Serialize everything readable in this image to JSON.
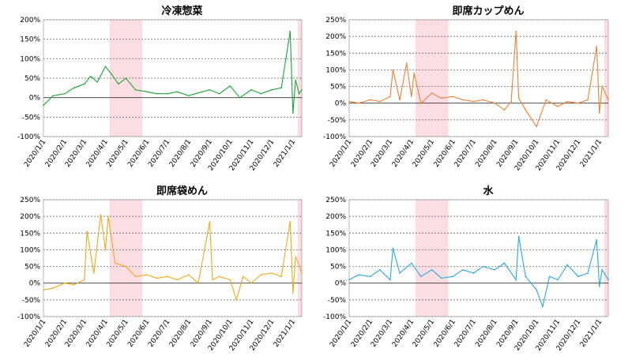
{
  "chart_data": [
    {
      "type": "line",
      "title": "冷凍惣菜",
      "color": "#1aa537",
      "ylim": [
        -100,
        200
      ],
      "yticks": [
        -100,
        -50,
        0,
        50,
        100,
        150,
        200
      ],
      "ytick_labels": [
        "-100%",
        "-50%",
        "0%",
        "50%",
        "100%",
        "150%",
        "200%"
      ],
      "xtick_labels": [
        "2020/1/1",
        "2020/2/1",
        "2020/3/1",
        "2020/4/1",
        "2020/5/1",
        "2020/6/1",
        "2020/7/1",
        "2020/8/1",
        "2020/9/1",
        "2020/10/1",
        "2020/11/1",
        "2020/12/1",
        "2021/1/1"
      ],
      "shaded_ranges": [
        [
          "2020/4/7",
          "2020/5/25"
        ],
        [
          "2021/1/8",
          "2021/1/14"
        ]
      ],
      "series": [
        {
          "x": [
            "2020/1/1",
            "2020/1/15",
            "2020/2/1",
            "2020/2/15",
            "2020/3/1",
            "2020/3/10",
            "2020/3/20",
            "2020/4/1",
            "2020/4/10",
            "2020/4/20",
            "2020/5/1",
            "2020/5/15",
            "2020/6/1",
            "2020/6/15",
            "2020/7/1",
            "2020/7/15",
            "2020/8/1",
            "2020/8/15",
            "2020/9/1",
            "2020/9/15",
            "2020/10/1",
            "2020/10/15",
            "2020/11/1",
            "2020/11/15",
            "2020/12/1",
            "2020/12/15",
            "2020/12/28",
            "2021/1/1",
            "2021/1/5",
            "2021/1/10",
            "2021/1/14"
          ],
          "values": [
            -20,
            5,
            10,
            25,
            35,
            55,
            40,
            80,
            60,
            35,
            50,
            20,
            15,
            10,
            10,
            15,
            5,
            12,
            20,
            10,
            30,
            0,
            20,
            10,
            20,
            25,
            170,
            -40,
            45,
            10,
            20
          ]
        }
      ]
    },
    {
      "type": "line",
      "title": "即席カップめん",
      "color": "#f07f34",
      "ylim": [
        -100,
        250
      ],
      "yticks": [
        -100,
        -50,
        0,
        50,
        100,
        150,
        200,
        250
      ],
      "ytick_labels": [
        "-100%",
        "-50%",
        "0%",
        "50%",
        "100%",
        "150%",
        "200%",
        "250%"
      ],
      "xtick_labels": [
        "2020/1/1",
        "2020/2/1",
        "2020/3/1",
        "2020/4/1",
        "2020/5/1",
        "2020/6/1",
        "2020/7/1",
        "2020/8/1",
        "2020/9/1",
        "2020/10/1",
        "2020/11/1",
        "2020/12/1",
        "2021/1/1"
      ],
      "shaded_ranges": [
        [
          "2020/4/7",
          "2020/5/25"
        ],
        [
          "2021/1/8",
          "2021/1/14"
        ]
      ],
      "series": [
        {
          "x": [
            "2020/1/1",
            "2020/1/15",
            "2020/2/1",
            "2020/2/15",
            "2020/3/1",
            "2020/3/5",
            "2020/3/15",
            "2020/3/25",
            "2020/4/1",
            "2020/4/5",
            "2020/4/15",
            "2020/5/1",
            "2020/5/15",
            "2020/6/1",
            "2020/6/15",
            "2020/7/1",
            "2020/7/15",
            "2020/8/1",
            "2020/8/15",
            "2020/8/25",
            "2020/9/1",
            "2020/9/5",
            "2020/9/15",
            "2020/10/1",
            "2020/10/15",
            "2020/11/1",
            "2020/11/15",
            "2020/12/1",
            "2020/12/15",
            "2020/12/28",
            "2021/1/1",
            "2021/1/5",
            "2021/1/14"
          ],
          "values": [
            5,
            0,
            10,
            5,
            20,
            100,
            10,
            120,
            20,
            90,
            0,
            30,
            15,
            20,
            10,
            5,
            10,
            0,
            -20,
            5,
            215,
            15,
            -20,
            -70,
            10,
            -10,
            5,
            0,
            10,
            170,
            -30,
            50,
            10
          ]
        }
      ]
    },
    {
      "type": "line",
      "title": "即席袋めん",
      "color": "#f2a81c",
      "ylim": [
        -100,
        250
      ],
      "yticks": [
        -100,
        -50,
        0,
        50,
        100,
        150,
        200,
        250
      ],
      "ytick_labels": [
        "-100%",
        "-50%",
        "0%",
        "50%",
        "100%",
        "150%",
        "200%",
        "250%"
      ],
      "xtick_labels": [
        "2020/1/1",
        "2020/2/1",
        "2020/3/1",
        "2020/4/1",
        "2020/5/1",
        "2020/6/1",
        "2020/7/1",
        "2020/8/1",
        "2020/9/1",
        "2020/10/1",
        "2020/11/1",
        "2020/12/1",
        "2021/1/1"
      ],
      "shaded_ranges": [
        [
          "2020/4/7",
          "2020/5/25"
        ],
        [
          "2021/1/8",
          "2021/1/14"
        ]
      ],
      "series": [
        {
          "x": [
            "2020/1/1",
            "2020/1/15",
            "2020/2/1",
            "2020/2/15",
            "2020/3/1",
            "2020/3/5",
            "2020/3/15",
            "2020/3/25",
            "2020/4/1",
            "2020/4/5",
            "2020/4/15",
            "2020/5/1",
            "2020/5/15",
            "2020/6/1",
            "2020/6/15",
            "2020/7/1",
            "2020/7/15",
            "2020/8/1",
            "2020/8/15",
            "2020/9/1",
            "2020/9/5",
            "2020/9/15",
            "2020/10/1",
            "2020/10/10",
            "2020/10/20",
            "2020/11/1",
            "2020/11/15",
            "2020/12/1",
            "2020/12/15",
            "2020/12/28",
            "2021/1/1",
            "2021/1/5",
            "2021/1/14"
          ],
          "values": [
            -20,
            -15,
            0,
            -5,
            10,
            155,
            30,
            205,
            100,
            200,
            60,
            50,
            20,
            25,
            15,
            20,
            10,
            25,
            0,
            185,
            10,
            20,
            10,
            -50,
            20,
            0,
            25,
            30,
            20,
            185,
            -30,
            80,
            30
          ]
        }
      ]
    },
    {
      "type": "line",
      "title": "水",
      "color": "#27a8e0",
      "ylim": [
        -100,
        250
      ],
      "yticks": [
        -100,
        -50,
        0,
        50,
        100,
        150,
        200,
        250
      ],
      "ytick_labels": [
        "-100%",
        "-50%",
        "0%",
        "50%",
        "100%",
        "150%",
        "200%",
        "250%"
      ],
      "xtick_labels": [
        "2020/1/1",
        "2020/2/1",
        "2020/3/1",
        "2020/4/1",
        "2020/5/1",
        "2020/6/1",
        "2020/7/1",
        "2020/8/1",
        "2020/9/1",
        "2020/10/1",
        "2020/11/1",
        "2020/12/1",
        "2021/1/1"
      ],
      "shaded_ranges": [
        [
          "2020/4/7",
          "2020/5/25"
        ],
        [
          "2021/1/8",
          "2021/1/14"
        ]
      ],
      "series": [
        {
          "x": [
            "2020/1/1",
            "2020/1/15",
            "2020/2/1",
            "2020/2/15",
            "2020/3/1",
            "2020/3/5",
            "2020/3/15",
            "2020/4/1",
            "2020/4/15",
            "2020/5/1",
            "2020/5/15",
            "2020/6/1",
            "2020/6/15",
            "2020/7/1",
            "2020/7/15",
            "2020/8/1",
            "2020/8/15",
            "2020/9/1",
            "2020/9/5",
            "2020/9/15",
            "2020/10/1",
            "2020/10/10",
            "2020/10/20",
            "2020/11/1",
            "2020/11/15",
            "2020/12/1",
            "2020/12/15",
            "2020/12/28",
            "2021/1/1",
            "2021/1/5",
            "2021/1/14"
          ],
          "values": [
            10,
            25,
            20,
            40,
            10,
            105,
            30,
            60,
            20,
            40,
            15,
            20,
            40,
            30,
            50,
            40,
            60,
            10,
            140,
            20,
            -20,
            -70,
            20,
            10,
            55,
            20,
            30,
            130,
            -10,
            40,
            10
          ]
        }
      ]
    }
  ]
}
